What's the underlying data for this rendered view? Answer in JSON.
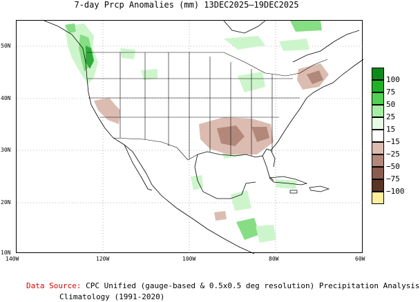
{
  "title": "7-day Prcp Anomalies (mm) 13DEC2025–19DEC2025",
  "axes": {
    "lon_ticks": [
      "140W",
      "120W",
      "100W",
      "80W",
      "60W"
    ],
    "lat_ticks": [
      "50N",
      "40N",
      "30N",
      "20N",
      "10N"
    ]
  },
  "legend": {
    "labels": [
      "100",
      "75",
      "50",
      "25",
      "15",
      "−15",
      "−25",
      "−50",
      "−75",
      "−100"
    ],
    "colors": [
      "#0c8a1c",
      "#22b027",
      "#52d152",
      "#a6eda4",
      "#e5fbe3",
      "#ffffff",
      "#dcbcb1",
      "#b2887a",
      "#8a5d4f",
      "#5a3425",
      "#ffef9c"
    ]
  },
  "source": {
    "key": "Data Source:",
    "text": "CPC Unified (gauge-based & 0.5x0.5 deg resolution) Precipitation Analysis",
    "climatology": "Climatology (1991-2020)"
  },
  "colors": {
    "wet_light": "#cdf5cb",
    "wet_mid": "#86dd84",
    "wet_dark": "#2faa3a",
    "dry_light": "#dcbcb1",
    "dry_mid": "#b2887a"
  }
}
